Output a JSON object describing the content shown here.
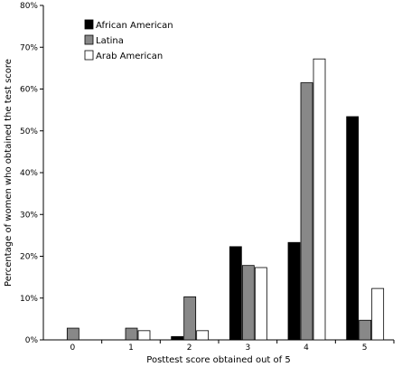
{
  "chart_data": {
    "type": "bar",
    "categories": [
      "0",
      "1",
      "2",
      "3",
      "4",
      "5"
    ],
    "series": [
      {
        "name": "African American",
        "values": [
          0,
          0,
          0.8,
          22.3,
          23.3,
          53.4
        ],
        "color": "#000000"
      },
      {
        "name": "Latina",
        "values": [
          2.8,
          2.8,
          10.3,
          17.8,
          61.5,
          4.7
        ],
        "color": "#888888"
      },
      {
        "name": "Arab American",
        "values": [
          0,
          2.2,
          2.2,
          17.3,
          67.2,
          12.3
        ],
        "color": "#ffffff"
      }
    ],
    "title": "",
    "xlabel": "Posttest score obtained out of 5",
    "ylabel": "Percentage of women who  obtained the test score",
    "ylim": [
      0,
      80
    ],
    "yticks": [
      0,
      10,
      20,
      30,
      40,
      50,
      60,
      70,
      80
    ],
    "ytick_labels": [
      "0%",
      "10%",
      "20%",
      "30%",
      "40%",
      "50%",
      "60%",
      "70%",
      "80%"
    ],
    "grid": false,
    "legend_position": "top-left"
  }
}
